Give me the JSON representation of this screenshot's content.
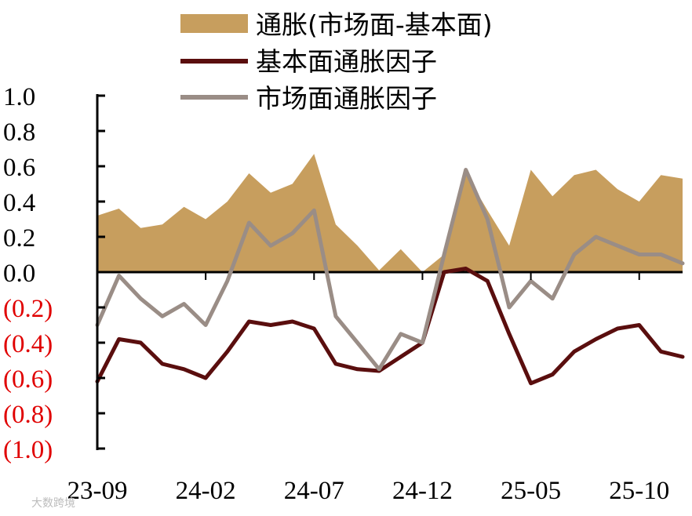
{
  "chart_data": {
    "type": "line",
    "legend": [
      {
        "label": "通胀(市场面-基本面)",
        "kind": "area",
        "color": "#c79e5e"
      },
      {
        "label": "基本面通胀因子",
        "kind": "line",
        "color": "#5a0e0e"
      },
      {
        "label": "市场面通胀因子",
        "kind": "line",
        "color": "#9a8d86"
      }
    ],
    "legend_position": "top",
    "y_ticks": [
      {
        "value": 1.0,
        "label": "1.0"
      },
      {
        "value": 0.8,
        "label": "0.8"
      },
      {
        "value": 0.6,
        "label": "0.6"
      },
      {
        "value": 0.4,
        "label": "0.4"
      },
      {
        "value": 0.2,
        "label": "0.2"
      },
      {
        "value": 0.0,
        "label": "0.0"
      },
      {
        "value": -0.2,
        "label": "(0.2)"
      },
      {
        "value": -0.4,
        "label": "(0.4)"
      },
      {
        "value": -0.6,
        "label": "(0.6)"
      },
      {
        "value": -0.8,
        "label": "(0.8)"
      },
      {
        "value": -1.0,
        "label": "(1.0)"
      }
    ],
    "ylim": [
      -1.0,
      1.0
    ],
    "negative_label_color": "#e00000",
    "x_ticks": [
      "23-09",
      "24-02",
      "24-07",
      "24-12",
      "25-05",
      "25-10"
    ],
    "xlim": [
      "23-09",
      "25-12"
    ],
    "grid": false,
    "x": [
      "23-09",
      "23-10",
      "23-11",
      "23-12",
      "24-01",
      "24-02",
      "24-03",
      "24-04",
      "24-05",
      "24-06",
      "24-07",
      "24-08",
      "24-09",
      "24-10",
      "24-11",
      "24-12",
      "25-01",
      "25-02",
      "25-03",
      "25-04",
      "25-05",
      "25-06",
      "25-07",
      "25-08",
      "25-09",
      "25-10",
      "25-11",
      "25-12"
    ],
    "series": [
      {
        "name": "基本面通胀因子",
        "values": [
          -0.62,
          -0.38,
          -0.4,
          -0.52,
          -0.55,
          -0.6,
          -0.45,
          -0.28,
          -0.3,
          -0.28,
          -0.32,
          -0.52,
          -0.55,
          -0.56,
          -0.48,
          -0.4,
          0.0,
          0.02,
          -0.05,
          -0.35,
          -0.63,
          -0.58,
          -0.45,
          -0.38,
          -0.32,
          -0.3,
          -0.45,
          -0.48
        ]
      },
      {
        "name": "市场面通胀因子",
        "values": [
          -0.3,
          -0.02,
          -0.15,
          -0.25,
          -0.18,
          -0.3,
          -0.05,
          0.28,
          0.15,
          0.22,
          0.35,
          -0.25,
          -0.4,
          -0.55,
          -0.35,
          -0.4,
          0.1,
          0.58,
          0.3,
          -0.2,
          -0.05,
          -0.15,
          0.1,
          0.2,
          0.15,
          0.1,
          0.1,
          0.05
        ]
      },
      {
        "name": "通胀(市场面-基本面)",
        "values": [
          0.32,
          0.36,
          0.25,
          0.27,
          0.37,
          0.3,
          0.4,
          0.56,
          0.45,
          0.5,
          0.67,
          0.27,
          0.15,
          0.01,
          0.13,
          0.0,
          0.1,
          0.56,
          0.35,
          0.15,
          0.58,
          0.43,
          0.55,
          0.58,
          0.47,
          0.4,
          0.55,
          0.53
        ]
      }
    ]
  },
  "watermark": {
    "text": "大数跨境"
  }
}
